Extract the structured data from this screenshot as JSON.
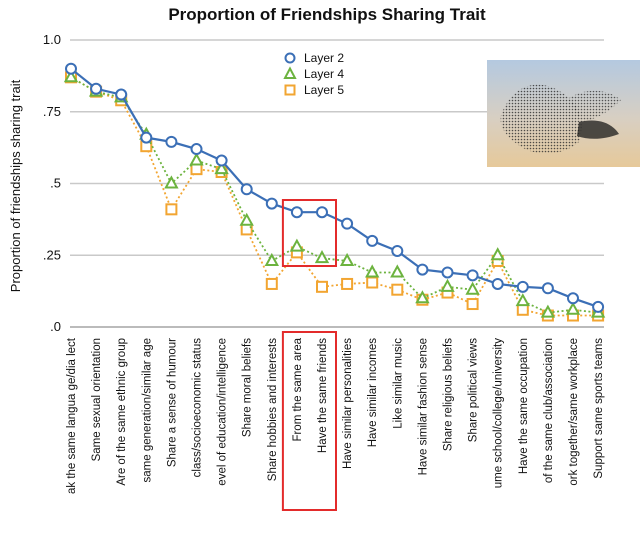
{
  "chart_data": {
    "type": "line",
    "title": "Proportion of Friendships Sharing Trait",
    "xlabel": "",
    "ylabel": "Proportion of friendships sharing trait",
    "ylim": [
      0,
      1.0
    ],
    "yticks": [
      {
        "value": 1.0,
        "label": "1.0"
      },
      {
        "value": 0.75,
        "label": ".75"
      },
      {
        "value": 0.5,
        "label": ".5"
      },
      {
        "value": 0.25,
        "label": ".25"
      },
      {
        "value": 0.0,
        "label": ".0"
      }
    ],
    "grid": true,
    "legend_position": "top-center",
    "categories": [
      "ak the same langua ge/dia lect",
      "Same sexual orientation",
      "Are of the same ethnic group",
      "same generation/similar age",
      "Share a sense of humour",
      "class/socioeconomic status",
      "evel of education/intelligence",
      "Share moral beliefs",
      "Share hobbies and interests",
      "From the same area",
      "Have the same friends",
      "Have similar personalities",
      "Have similar incomes",
      "Like similar music",
      "Have similar fashion sense",
      "Share religious beliefs",
      "Share political views",
      "ume school/college/university",
      "Have the same occupation",
      "of the same club/association",
      "ork together/same workplace",
      "Support same sports teams"
    ],
    "series": [
      {
        "name": "Layer 2",
        "color": "#3b6fb6",
        "marker": "circle",
        "line": "solid",
        "values": [
          0.9,
          0.83,
          0.81,
          0.66,
          0.645,
          0.62,
          0.58,
          0.48,
          0.43,
          0.4,
          0.4,
          0.36,
          0.3,
          0.265,
          0.2,
          0.19,
          0.18,
          0.15,
          0.14,
          0.135,
          0.1,
          0.07
        ]
      },
      {
        "name": "Layer 4",
        "color": "#6cb33f",
        "marker": "triangle",
        "line": "dotted",
        "values": [
          0.87,
          0.82,
          0.8,
          0.67,
          0.5,
          0.58,
          0.55,
          0.37,
          0.23,
          0.28,
          0.24,
          0.23,
          0.19,
          0.19,
          0.1,
          0.14,
          0.13,
          0.25,
          0.09,
          0.05,
          0.06,
          0.05
        ]
      },
      {
        "name": "Layer 5",
        "color": "#f2a531",
        "marker": "square",
        "line": "dotted",
        "values": [
          0.87,
          0.82,
          0.79,
          0.63,
          0.41,
          0.55,
          0.54,
          0.34,
          0.15,
          0.26,
          0.14,
          0.15,
          0.155,
          0.13,
          0.095,
          0.12,
          0.08,
          0.23,
          0.06,
          0.04,
          0.04,
          0.04
        ]
      }
    ],
    "highlights": [
      {
        "categories": [
          "From the same area",
          "Have the same friends"
        ],
        "color": "#e32b2b"
      }
    ]
  }
}
